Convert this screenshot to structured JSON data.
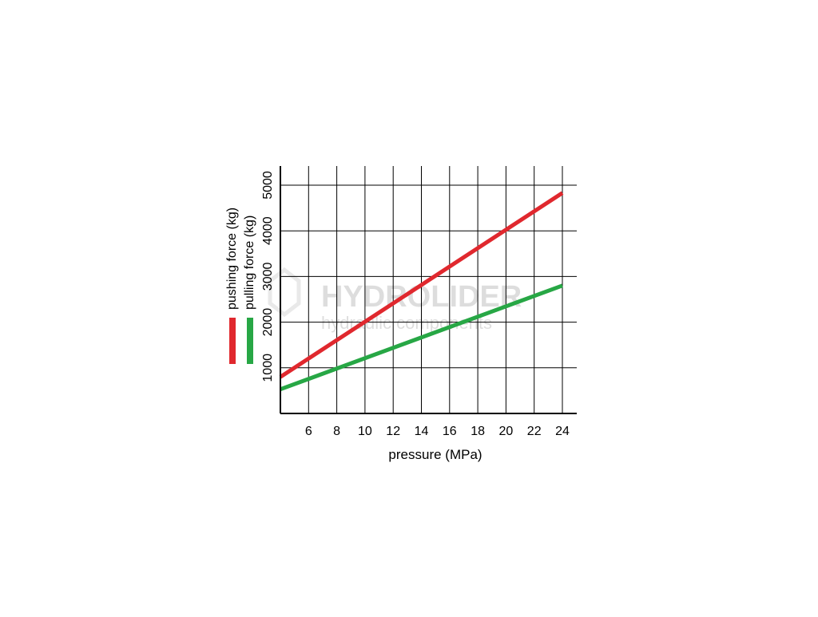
{
  "chart_data": {
    "type": "line",
    "xlabel": "pressure (MPa)",
    "x_ticks": [
      6,
      8,
      10,
      12,
      14,
      16,
      18,
      20,
      22,
      24
    ],
    "xlim": [
      4,
      25
    ],
    "y_ticks": [
      1000,
      2000,
      3000,
      4000,
      5000
    ],
    "ylim": [
      0,
      5400
    ],
    "grid": true,
    "legend_placement": "left, rotated vertical",
    "series": [
      {
        "name": "pushing force (kg)",
        "color": "#e0282e",
        "x": [
          4,
          24
        ],
        "values": [
          800,
          4830
        ]
      },
      {
        "name": "pulling force (kg)",
        "color": "#27a745",
        "x": [
          4,
          24
        ],
        "values": [
          530,
          2800
        ]
      }
    ],
    "watermark": {
      "brand": "HYDROLIDER",
      "tagline": "hydraulic components"
    }
  }
}
